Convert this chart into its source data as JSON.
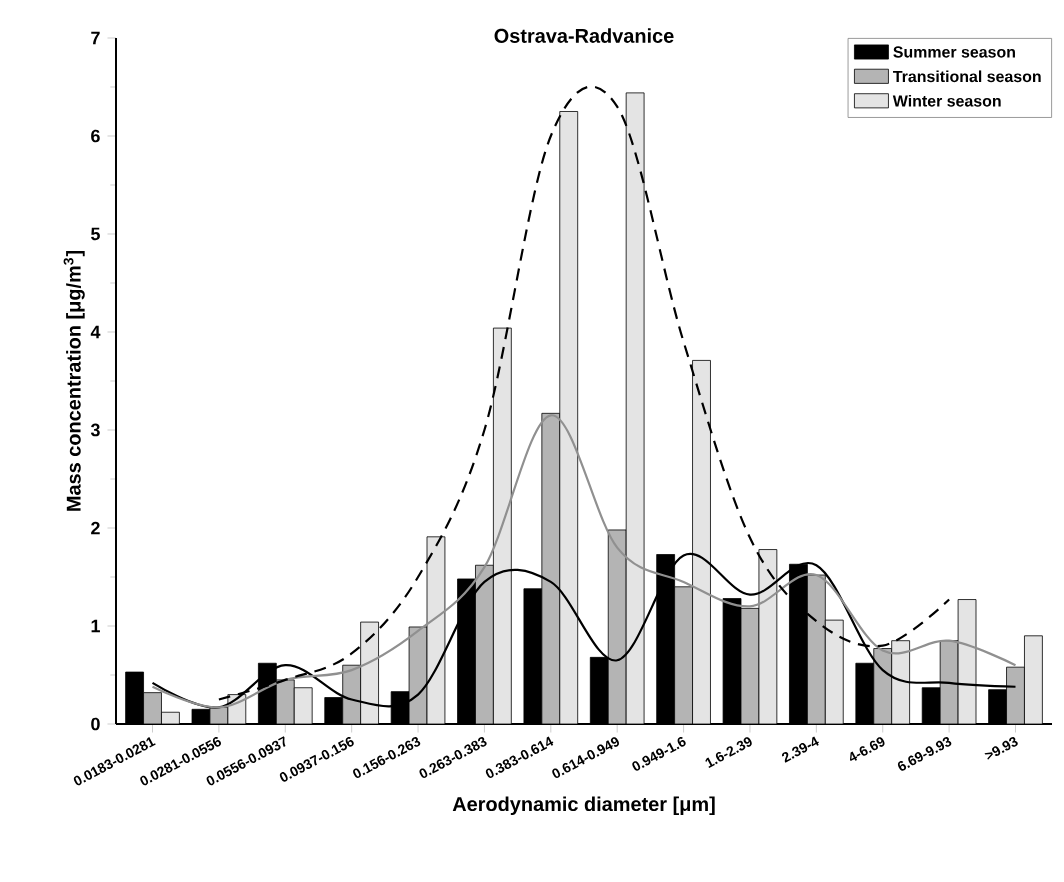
{
  "chart_data": {
    "type": "bar",
    "title": "Ostrava-Radvanice",
    "xlabel": "Aerodynamic diameter [μm]",
    "ylabel": "Mass concentration [μg/m$^{3}$]",
    "categories": [
      "0.0183-0.0281",
      "0.0281-0.0556",
      "0.0556-0.0937",
      "0.0937-0.156",
      "0.156-0.263",
      "0.263-0.383",
      "0.383-0.614",
      "0.614-0.949",
      "0.949-1.6",
      "1.6-2.39",
      "2.39-4",
      "4-6.69",
      "6.69-9.93",
      ">9.93"
    ],
    "ylim": [
      0,
      7
    ],
    "yticks": [
      0,
      1,
      2,
      3,
      4,
      5,
      6,
      7
    ],
    "legend": "top right",
    "grid": false,
    "series": [
      {
        "name": "Summer season",
        "color": "#000000",
        "values": [
          0.53,
          0.15,
          0.62,
          0.27,
          0.33,
          1.48,
          1.38,
          0.68,
          1.73,
          1.28,
          1.63,
          0.62,
          0.37,
          0.35
        ]
      },
      {
        "type": "line",
        "color": "#000000",
        "line_style": "solid",
        "values": [
          0.42,
          0.17,
          0.6,
          0.25,
          0.3,
          1.45,
          1.45,
          0.65,
          1.72,
          1.32,
          1.62,
          0.55,
          0.42,
          0.38
        ]
      },
      {
        "name": "Transitional season",
        "color": "#b4b4b4",
        "values": [
          0.32,
          0.17,
          0.45,
          0.6,
          0.99,
          1.62,
          3.17,
          1.98,
          1.4,
          1.18,
          1.52,
          0.77,
          0.85,
          0.58
        ]
      },
      {
        "type": "line",
        "color": "#909090",
        "line_style": "solid",
        "values": [
          0.38,
          0.17,
          0.45,
          0.55,
          0.95,
          1.6,
          3.15,
          1.8,
          1.45,
          1.2,
          1.52,
          0.75,
          0.85,
          0.6
        ]
      },
      {
        "name": "Winter season",
        "color": "#e4e4e4",
        "values": [
          0.12,
          0.3,
          0.37,
          1.04,
          1.91,
          4.04,
          6.25,
          6.44,
          3.71,
          1.78,
          1.06,
          0.85,
          1.27,
          0.9
        ]
      },
      {
        "type": "line",
        "color": "#000000",
        "line_style": "dashed",
        "values": [
          null,
          0.25,
          0.45,
          0.72,
          1.5,
          3.0,
          6.0,
          6.3,
          3.9,
          1.9,
          1.05,
          0.8,
          1.27,
          null
        ]
      }
    ]
  }
}
